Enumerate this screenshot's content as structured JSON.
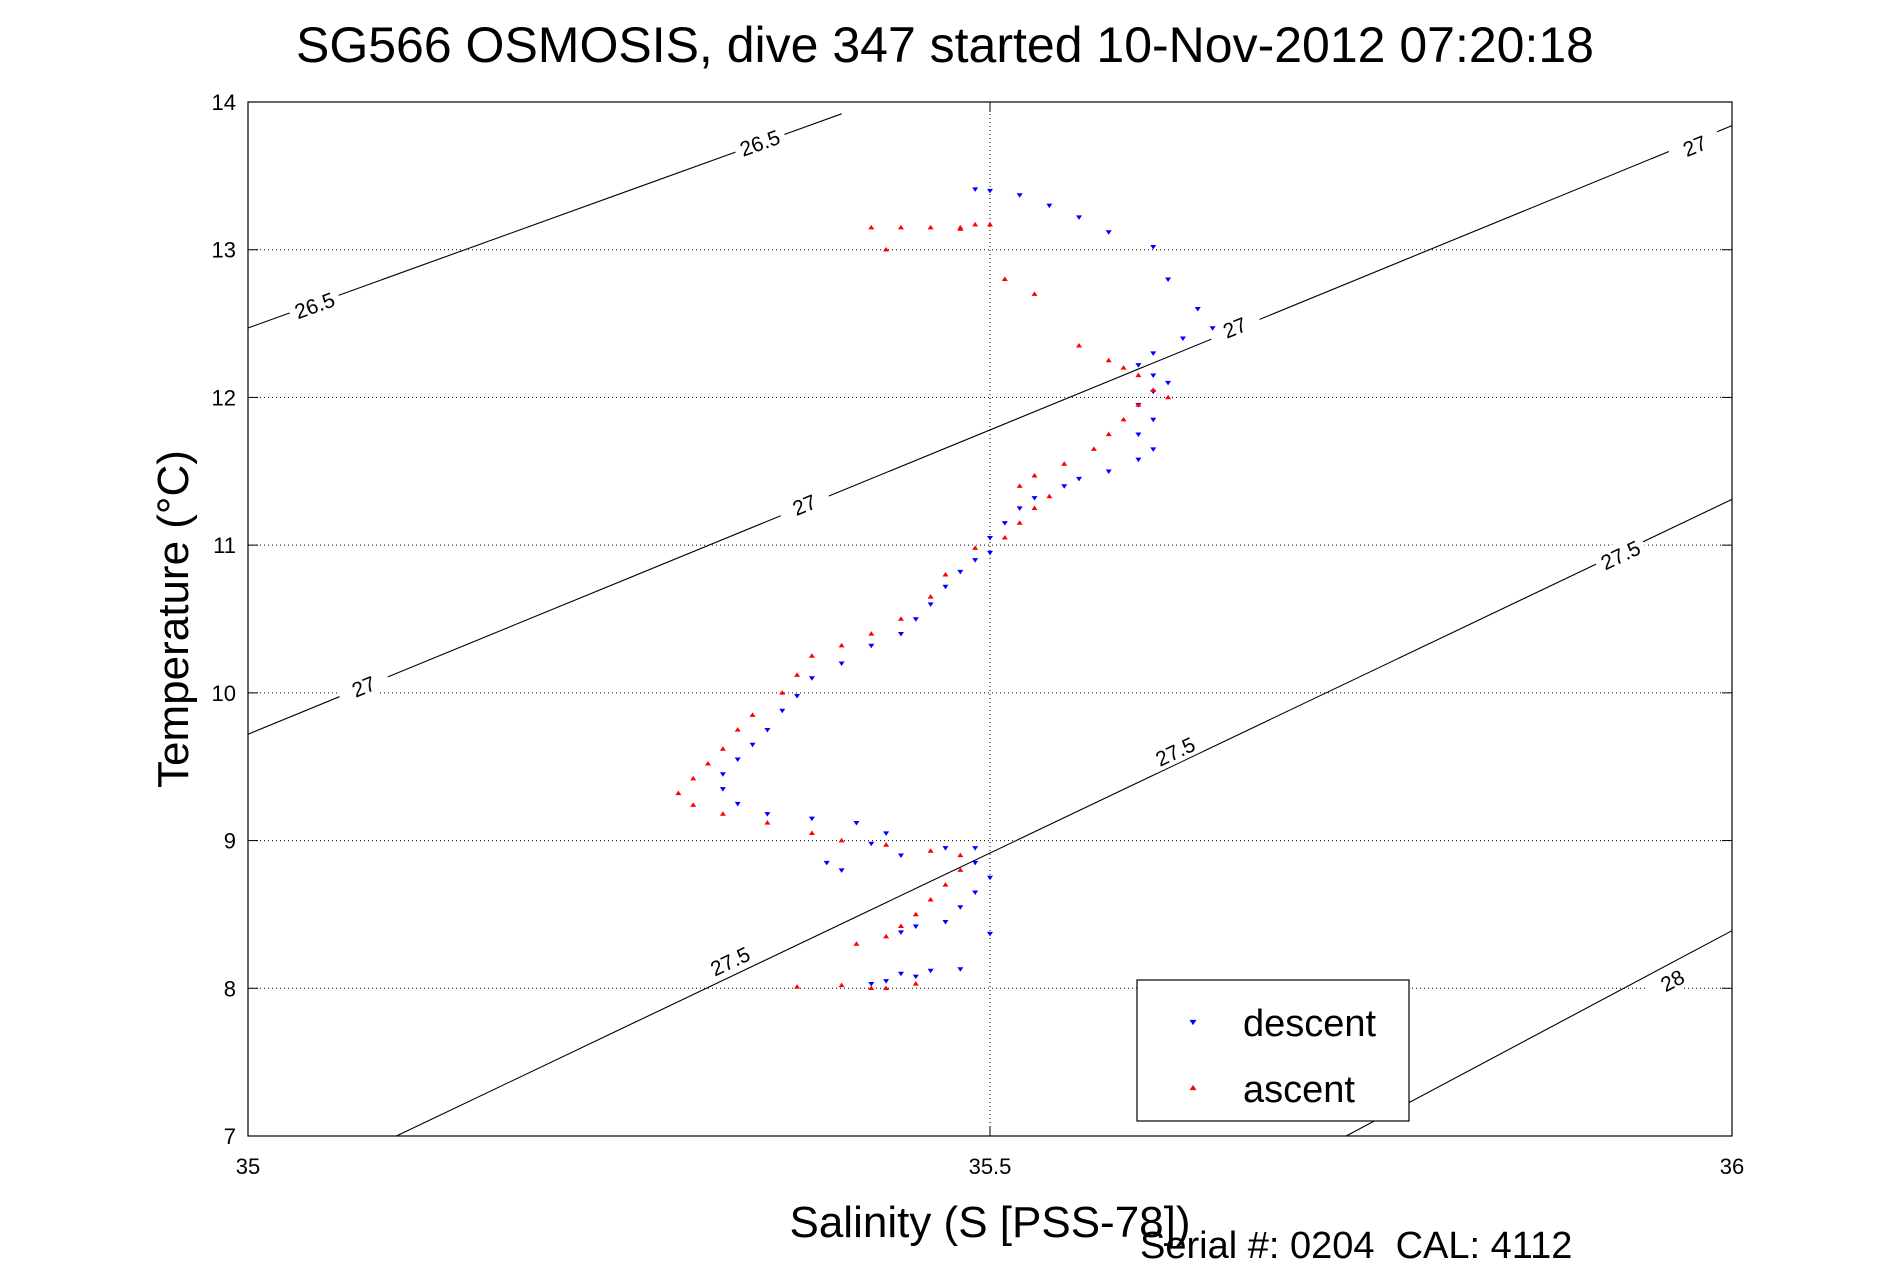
{
  "chart_data": {
    "type": "scatter",
    "title": "SG566 OSMOSIS, dive 347 started 10-Nov-2012 07:20:18",
    "xlabel": "Salinity (S [PSS-78])",
    "ylabel": "Temperature (°C)",
    "footer": "Serial #: 0204  CAL: 4112",
    "xlim": [
      35,
      36
    ],
    "ylim": [
      7,
      14
    ],
    "x_ticks": [
      35,
      35.5,
      36
    ],
    "x_tick_labels": [
      "35",
      "35.5",
      "36"
    ],
    "y_ticks": [
      7,
      8,
      9,
      10,
      11,
      12,
      13,
      14
    ],
    "y_tick_labels": [
      "7",
      "8",
      "9",
      "10",
      "11",
      "12",
      "13",
      "14"
    ],
    "grid": true,
    "legend_position": "bottom-right",
    "density_contours": [
      {
        "level": "26.5",
        "points": [
          [
            35,
            12.47
          ],
          [
            35.4,
            13.92
          ]
        ],
        "labels": [
          {
            "x": 35.045,
            "y": 12.62
          },
          {
            "x": 35.345,
            "y": 13.72
          }
        ]
      },
      {
        "level": "27",
        "points": [
          [
            35,
            9.72
          ],
          [
            36,
            13.84
          ]
        ],
        "labels": [
          {
            "x": 35.078,
            "y": 10.04
          },
          {
            "x": 35.375,
            "y": 11.27
          },
          {
            "x": 35.665,
            "y": 12.47
          },
          {
            "x": 35.975,
            "y": 13.7
          }
        ]
      },
      {
        "level": "27.5",
        "points": [
          [
            35.1,
            7
          ],
          [
            36,
            11.31
          ]
        ],
        "labels": [
          {
            "x": 35.325,
            "y": 8.18
          },
          {
            "x": 35.625,
            "y": 9.6
          },
          {
            "x": 35.925,
            "y": 10.93
          }
        ]
      },
      {
        "level": "28",
        "points": [
          [
            35.74,
            7
          ],
          [
            36,
            8.39
          ]
        ],
        "labels": [
          {
            "x": 35.96,
            "y": 8.05
          }
        ]
      }
    ],
    "series": [
      {
        "name": "descent",
        "color": "#0000ff",
        "marker": "triangle-down",
        "points": [
          [
            35.49,
            13.41
          ],
          [
            35.5,
            13.4
          ],
          [
            35.52,
            13.37
          ],
          [
            35.54,
            13.3
          ],
          [
            35.56,
            13.22
          ],
          [
            35.58,
            13.12
          ],
          [
            35.61,
            13.02
          ],
          [
            35.62,
            12.8
          ],
          [
            35.64,
            12.6
          ],
          [
            35.65,
            12.47
          ],
          [
            35.63,
            12.4
          ],
          [
            35.61,
            12.3
          ],
          [
            35.6,
            12.22
          ],
          [
            35.61,
            12.15
          ],
          [
            35.62,
            12.1
          ],
          [
            35.61,
            12.04
          ],
          [
            35.6,
            11.95
          ],
          [
            35.61,
            11.85
          ],
          [
            35.6,
            11.75
          ],
          [
            35.61,
            11.65
          ],
          [
            35.6,
            11.58
          ],
          [
            35.58,
            11.5
          ],
          [
            35.56,
            11.45
          ],
          [
            35.55,
            11.4
          ],
          [
            35.53,
            11.32
          ],
          [
            35.52,
            11.25
          ],
          [
            35.51,
            11.15
          ],
          [
            35.5,
            11.05
          ],
          [
            35.5,
            10.95
          ],
          [
            35.49,
            10.9
          ],
          [
            35.48,
            10.82
          ],
          [
            35.47,
            10.72
          ],
          [
            35.46,
            10.6
          ],
          [
            35.45,
            10.5
          ],
          [
            35.44,
            10.4
          ],
          [
            35.42,
            10.32
          ],
          [
            35.4,
            10.2
          ],
          [
            35.38,
            10.1
          ],
          [
            35.37,
            9.98
          ],
          [
            35.36,
            9.88
          ],
          [
            35.35,
            9.75
          ],
          [
            35.34,
            9.65
          ],
          [
            35.33,
            9.55
          ],
          [
            35.32,
            9.45
          ],
          [
            35.32,
            9.35
          ],
          [
            35.33,
            9.25
          ],
          [
            35.35,
            9.18
          ],
          [
            35.38,
            9.15
          ],
          [
            35.41,
            9.12
          ],
          [
            35.43,
            9.05
          ],
          [
            35.42,
            8.98
          ],
          [
            35.44,
            8.9
          ],
          [
            35.47,
            8.95
          ],
          [
            35.49,
            8.95
          ],
          [
            35.49,
            8.85
          ],
          [
            35.5,
            8.75
          ],
          [
            35.49,
            8.65
          ],
          [
            35.48,
            8.55
          ],
          [
            35.47,
            8.45
          ],
          [
            35.45,
            8.42
          ],
          [
            35.44,
            8.38
          ],
          [
            35.39,
            8.85
          ],
          [
            35.4,
            8.8
          ],
          [
            35.5,
            8.37
          ],
          [
            35.46,
            8.12
          ],
          [
            35.45,
            8.08
          ],
          [
            35.43,
            8.05
          ],
          [
            35.42,
            8.03
          ],
          [
            35.48,
            8.13
          ],
          [
            35.44,
            8.1
          ]
        ]
      },
      {
        "name": "ascent",
        "color": "#ff0000",
        "marker": "triangle-up",
        "points": [
          [
            35.42,
            13.15
          ],
          [
            35.44,
            13.15
          ],
          [
            35.46,
            13.15
          ],
          [
            35.48,
            13.15
          ],
          [
            35.49,
            13.17
          ],
          [
            35.5,
            13.17
          ],
          [
            35.48,
            13.14
          ],
          [
            35.43,
            13.0
          ],
          [
            35.51,
            12.8
          ],
          [
            35.53,
            12.7
          ],
          [
            35.56,
            12.35
          ],
          [
            35.58,
            12.25
          ],
          [
            35.59,
            12.2
          ],
          [
            35.6,
            12.15
          ],
          [
            35.61,
            12.05
          ],
          [
            35.62,
            12.0
          ],
          [
            35.6,
            11.95
          ],
          [
            35.59,
            11.85
          ],
          [
            35.58,
            11.75
          ],
          [
            35.57,
            11.65
          ],
          [
            35.55,
            11.55
          ],
          [
            35.53,
            11.47
          ],
          [
            35.52,
            11.4
          ],
          [
            35.54,
            11.33
          ],
          [
            35.53,
            11.25
          ],
          [
            35.52,
            11.15
          ],
          [
            35.51,
            11.05
          ],
          [
            35.49,
            10.98
          ],
          [
            35.47,
            10.8
          ],
          [
            35.46,
            10.65
          ],
          [
            35.44,
            10.5
          ],
          [
            35.42,
            10.4
          ],
          [
            35.4,
            10.32
          ],
          [
            35.38,
            10.25
          ],
          [
            35.37,
            10.12
          ],
          [
            35.36,
            10.0
          ],
          [
            35.34,
            9.85
          ],
          [
            35.33,
            9.75
          ],
          [
            35.32,
            9.62
          ],
          [
            35.31,
            9.52
          ],
          [
            35.3,
            9.42
          ],
          [
            35.29,
            9.32
          ],
          [
            35.3,
            9.24
          ],
          [
            35.32,
            9.18
          ],
          [
            35.35,
            9.12
          ],
          [
            35.38,
            9.05
          ],
          [
            35.4,
            9.0
          ],
          [
            35.43,
            8.97
          ],
          [
            35.46,
            8.93
          ],
          [
            35.48,
            8.9
          ],
          [
            35.48,
            8.8
          ],
          [
            35.47,
            8.7
          ],
          [
            35.46,
            8.6
          ],
          [
            35.45,
            8.5
          ],
          [
            35.44,
            8.42
          ],
          [
            35.43,
            8.35
          ],
          [
            35.41,
            8.3
          ],
          [
            35.42,
            8.0
          ],
          [
            35.4,
            8.02
          ],
          [
            35.45,
            8.03
          ],
          [
            35.43,
            8.0
          ],
          [
            35.37,
            8.01
          ]
        ]
      }
    ]
  }
}
